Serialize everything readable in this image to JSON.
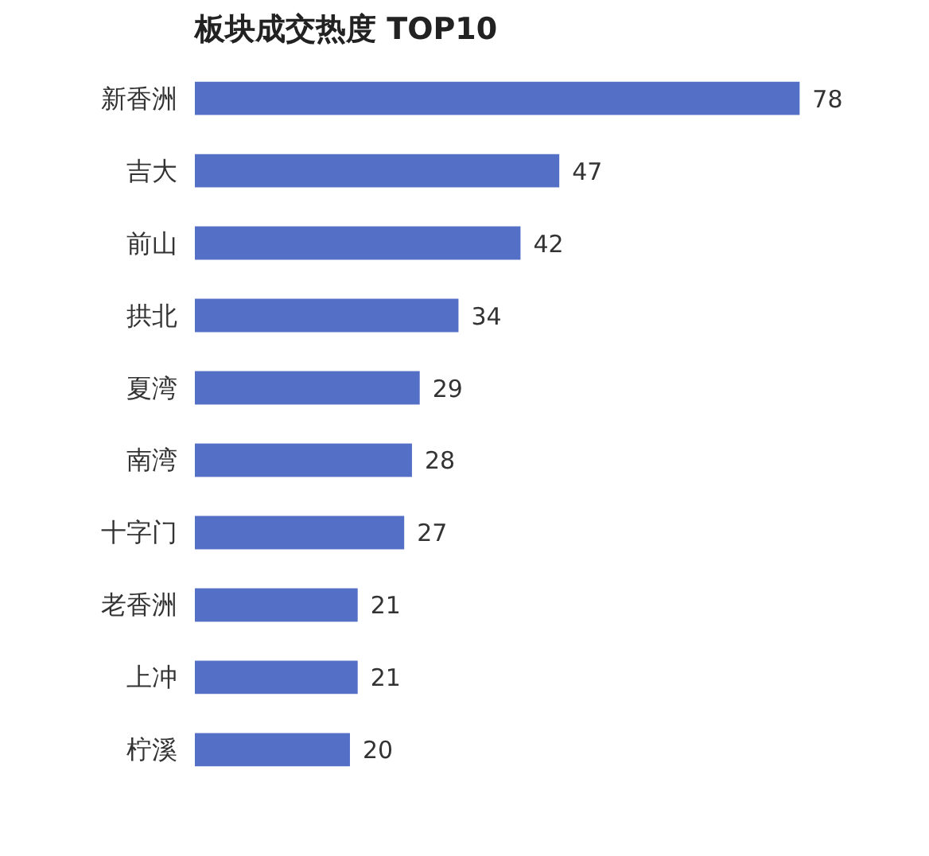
{
  "chart_data": {
    "type": "bar",
    "title": "板块成交热度 TOP10",
    "orientation": "horizontal",
    "categories": [
      "新香洲",
      "吉大",
      "前山",
      "拱北",
      "夏湾",
      "南湾",
      "十字门",
      "老香洲",
      "上冲",
      "柠溪"
    ],
    "values": [
      78,
      47,
      42,
      34,
      29,
      28,
      27,
      21,
      21,
      20
    ],
    "color": "#5470c6",
    "data_labels": true,
    "grid": false
  }
}
